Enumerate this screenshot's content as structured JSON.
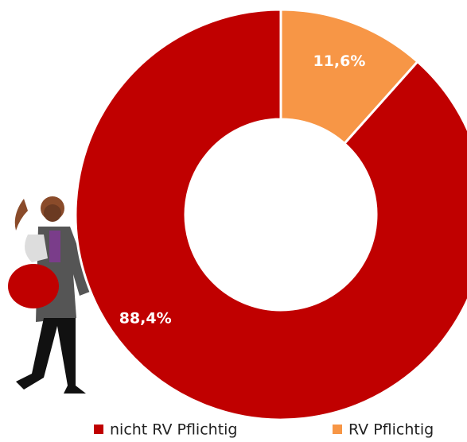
{
  "chart_data": {
    "type": "donut",
    "categories": [
      "nicht RV Pflichtig",
      "RV Pflichtig"
    ],
    "values": [
      88.4,
      11.6
    ],
    "value_labels": [
      "88,4%",
      "11,6%"
    ],
    "colors": [
      "#c00000",
      "#f79646"
    ]
  }
}
